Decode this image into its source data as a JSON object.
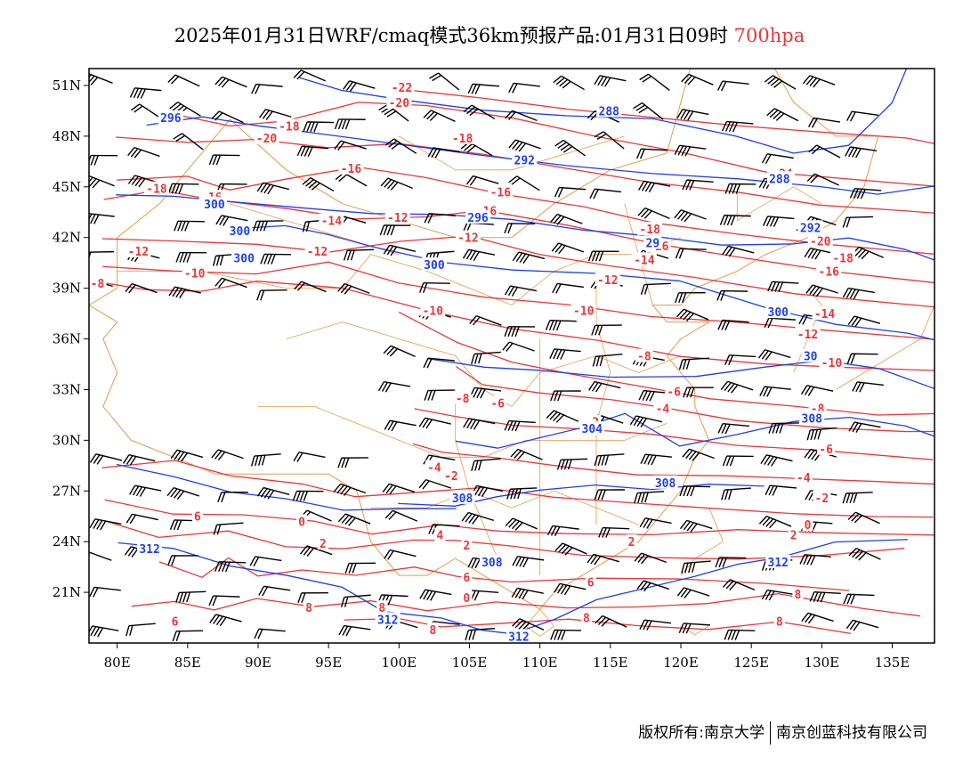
{
  "title": {
    "main": "2025年01月31日WRF/cmaq模式36km预报产品:01月31日09时",
    "level": "700hpa"
  },
  "footer": {
    "copyright": "版权所有:南京大学",
    "company": "南京创蓝科技有限公司"
  },
  "colors": {
    "temperature": "#e8373a",
    "geopotential": "#1f3fe6",
    "border": "#e69a4a",
    "wind": "#000000"
  },
  "map": {
    "lon_range": [
      78,
      138
    ],
    "lat_range": [
      18,
      52
    ],
    "x_ticks": [
      "80E",
      "85E",
      "90E",
      "95E",
      "100E",
      "105E",
      "110E",
      "115E",
      "120E",
      "125E",
      "130E",
      "135E"
    ],
    "y_ticks": [
      "51N",
      "48N",
      "45N",
      "42N",
      "39N",
      "36N",
      "33N",
      "30N",
      "27N",
      "24N",
      "21N"
    ]
  },
  "temp_labels": [
    {
      "text": "-22",
      "lon": 100.2,
      "lat": 50.9
    },
    {
      "text": "-20",
      "lon": 100.0,
      "lat": 50.0
    },
    {
      "text": "-18",
      "lon": 92.2,
      "lat": 48.6
    },
    {
      "text": "-20",
      "lon": 90.6,
      "lat": 47.9
    },
    {
      "text": "-18",
      "lon": 104.5,
      "lat": 47.9
    },
    {
      "text": "-16",
      "lon": 96.6,
      "lat": 46.1
    },
    {
      "text": "-18",
      "lon": 82.8,
      "lat": 44.9
    },
    {
      "text": "-16",
      "lon": 86.7,
      "lat": 44.4
    },
    {
      "text": "-16",
      "lon": 107.2,
      "lat": 44.7
    },
    {
      "text": "-24",
      "lon": 127.2,
      "lat": 45.8
    },
    {
      "text": "-14",
      "lon": 95.2,
      "lat": 43.0
    },
    {
      "text": "-12",
      "lon": 99.9,
      "lat": 43.2
    },
    {
      "text": "-16",
      "lon": 106.2,
      "lat": 43.6
    },
    {
      "text": "-12",
      "lon": 104.9,
      "lat": 42.0
    },
    {
      "text": "-18",
      "lon": 117.8,
      "lat": 42.5
    },
    {
      "text": "-16",
      "lon": 118.4,
      "lat": 41.5
    },
    {
      "text": "-22",
      "lon": 128.8,
      "lat": 42.5
    },
    {
      "text": "-20",
      "lon": 129.9,
      "lat": 41.8
    },
    {
      "text": "-14",
      "lon": 117.4,
      "lat": 40.7
    },
    {
      "text": "-18",
      "lon": 131.5,
      "lat": 40.8
    },
    {
      "text": "-12",
      "lon": 81.5,
      "lat": 41.2
    },
    {
      "text": "-12",
      "lon": 94.2,
      "lat": 41.2
    },
    {
      "text": "-10",
      "lon": 85.5,
      "lat": 39.9
    },
    {
      "text": "-16",
      "lon": 130.5,
      "lat": 40.0
    },
    {
      "text": "-12",
      "lon": 114.8,
      "lat": 39.5
    },
    {
      "text": "-8",
      "lon": 78.6,
      "lat": 39.3
    },
    {
      "text": "-10",
      "lon": 102.4,
      "lat": 37.7
    },
    {
      "text": "-10",
      "lon": 113.1,
      "lat": 37.7
    },
    {
      "text": "-14",
      "lon": 130.2,
      "lat": 37.5
    },
    {
      "text": "-12",
      "lon": 129.0,
      "lat": 36.3
    },
    {
      "text": "-8",
      "lon": 117.4,
      "lat": 35.0
    },
    {
      "text": "-10",
      "lon": 130.7,
      "lat": 34.6
    },
    {
      "text": "-6",
      "lon": 119.5,
      "lat": 32.9
    },
    {
      "text": "-8",
      "lon": 104.5,
      "lat": 32.5
    },
    {
      "text": "-6",
      "lon": 107.0,
      "lat": 32.2
    },
    {
      "text": "-4",
      "lon": 118.7,
      "lat": 31.9
    },
    {
      "text": "-8",
      "lon": 129.7,
      "lat": 31.9
    },
    {
      "text": "-2",
      "lon": 113.7,
      "lat": 31.1
    },
    {
      "text": "-6",
      "lon": 130.3,
      "lat": 29.5
    },
    {
      "text": "-4",
      "lon": 102.5,
      "lat": 28.4
    },
    {
      "text": "-2",
      "lon": 103.7,
      "lat": 27.9
    },
    {
      "text": "-4",
      "lon": 128.7,
      "lat": 27.8
    },
    {
      "text": "-2",
      "lon": 130.0,
      "lat": 26.6
    },
    {
      "text": "6",
      "lon": 85.7,
      "lat": 25.5
    },
    {
      "text": "0",
      "lon": 93.1,
      "lat": 25.2
    },
    {
      "text": "0",
      "lon": 129.0,
      "lat": 25.0
    },
    {
      "text": "2",
      "lon": 94.6,
      "lat": 23.9
    },
    {
      "text": "4",
      "lon": 102.9,
      "lat": 24.4
    },
    {
      "text": "2",
      "lon": 104.8,
      "lat": 23.8
    },
    {
      "text": "2",
      "lon": 116.5,
      "lat": 24.0
    },
    {
      "text": "2",
      "lon": 128.0,
      "lat": 24.4
    },
    {
      "text": "4",
      "lon": 127.2,
      "lat": 22.9
    },
    {
      "text": "6",
      "lon": 104.8,
      "lat": 21.9
    },
    {
      "text": "6",
      "lon": 113.6,
      "lat": 21.6
    },
    {
      "text": "0",
      "lon": 104.8,
      "lat": 20.7
    },
    {
      "text": "8",
      "lon": 93.6,
      "lat": 20.1
    },
    {
      "text": "8",
      "lon": 98.8,
      "lat": 20.1
    },
    {
      "text": "6",
      "lon": 84.1,
      "lat": 19.3
    },
    {
      "text": "8",
      "lon": 128.3,
      "lat": 20.9
    },
    {
      "text": "8",
      "lon": 113.3,
      "lat": 19.5
    },
    {
      "text": "8",
      "lon": 127.0,
      "lat": 19.3
    },
    {
      "text": "8",
      "lon": 102.4,
      "lat": 18.8
    }
  ],
  "gph_labels": [
    {
      "text": "296",
      "lon": 83.8,
      "lat": 49.1
    },
    {
      "text": "288",
      "lon": 114.9,
      "lat": 49.5
    },
    {
      "text": "292",
      "lon": 108.9,
      "lat": 46.6
    },
    {
      "text": "288",
      "lon": 127.0,
      "lat": 45.5
    },
    {
      "text": "300",
      "lon": 86.9,
      "lat": 44.0
    },
    {
      "text": "296",
      "lon": 105.6,
      "lat": 43.2
    },
    {
      "text": "300",
      "lon": 88.7,
      "lat": 42.4
    },
    {
      "text": "292",
      "lon": 129.2,
      "lat": 42.6
    },
    {
      "text": "300",
      "lon": 89.0,
      "lat": 40.8
    },
    {
      "text": "300",
      "lon": 102.5,
      "lat": 40.4
    },
    {
      "text": "29",
      "lon": 118.0,
      "lat": 41.7
    },
    {
      "text": "300",
      "lon": 126.9,
      "lat": 37.6
    },
    {
      "text": "30",
      "lon": 129.2,
      "lat": 35.0
    },
    {
      "text": "308",
      "lon": 129.3,
      "lat": 31.3
    },
    {
      "text": "304",
      "lon": 113.7,
      "lat": 30.7
    },
    {
      "text": "308",
      "lon": 104.5,
      "lat": 26.6
    },
    {
      "text": "308",
      "lon": 118.9,
      "lat": 27.5
    },
    {
      "text": "312",
      "lon": 82.3,
      "lat": 23.6
    },
    {
      "text": "308",
      "lon": 106.6,
      "lat": 22.8
    },
    {
      "text": "312",
      "lon": 126.9,
      "lat": 22.8
    },
    {
      "text": "312",
      "lon": 99.2,
      "lat": 19.4
    },
    {
      "text": "312",
      "lon": 108.5,
      "lat": 18.4
    }
  ]
}
